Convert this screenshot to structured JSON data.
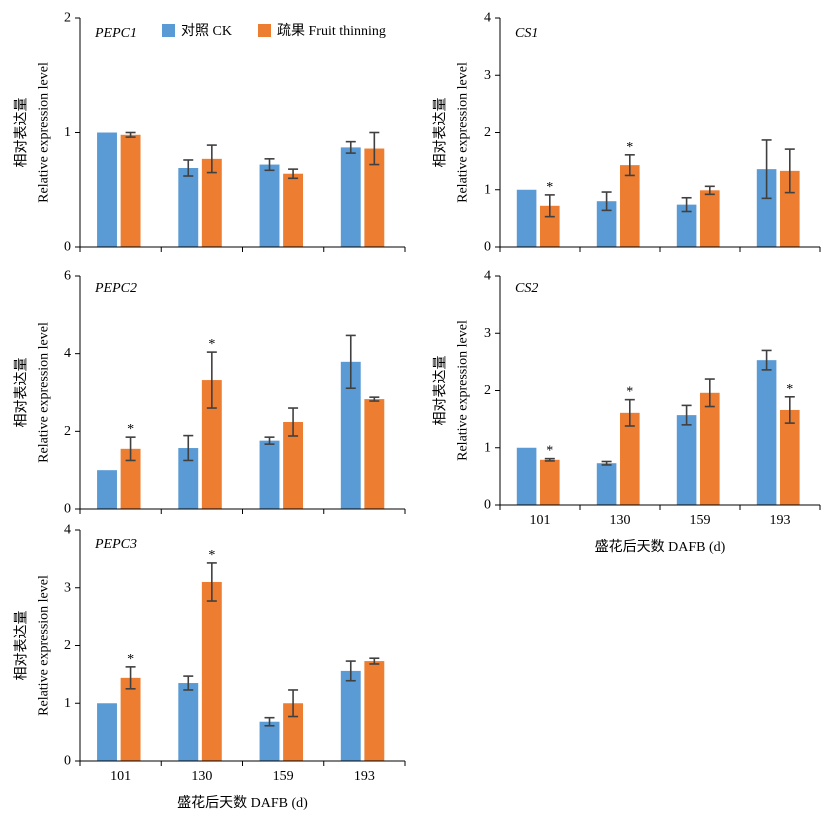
{
  "chart_data": [
    {
      "type": "bar",
      "title": "PEPC1",
      "categories": [
        "101",
        "130",
        "159",
        "193"
      ],
      "show_x_tick_labels": false,
      "xlabel": "",
      "ylabel": [
        "相对表达量",
        "Relative expression level"
      ],
      "ylim": [
        0,
        2
      ],
      "yticks": [
        0,
        1,
        2
      ],
      "grid": false,
      "legend": "top-center",
      "series": [
        {
          "name": "对照 CK",
          "color": "#5B9BD5",
          "values": [
            1.0,
            0.69,
            0.72,
            0.87
          ],
          "errors": [
            0.0,
            0.07,
            0.05,
            0.05
          ],
          "marks": [
            "",
            "",
            "",
            ""
          ]
        },
        {
          "name": "疏果 Fruit thinning",
          "color": "#ED7D31",
          "values": [
            0.98,
            0.77,
            0.64,
            0.86
          ],
          "errors": [
            0.02,
            0.12,
            0.04,
            0.14
          ],
          "marks": [
            "",
            "",
            "",
            ""
          ]
        }
      ]
    },
    {
      "type": "bar",
      "title": "CS1",
      "categories": [
        "101",
        "130",
        "159",
        "193"
      ],
      "show_x_tick_labels": false,
      "xlabel": "",
      "ylabel": [
        "相对表达量",
        "Relative expression level"
      ],
      "ylim": [
        0,
        4
      ],
      "yticks": [
        0,
        1,
        2,
        3,
        4
      ],
      "grid": false,
      "series": [
        {
          "name": "对照 CK",
          "color": "#5B9BD5",
          "values": [
            1.0,
            0.8,
            0.74,
            1.36
          ],
          "errors": [
            0.0,
            0.16,
            0.12,
            0.51
          ],
          "marks": [
            "",
            "",
            "",
            ""
          ]
        },
        {
          "name": "疏果 Fruit thinning",
          "color": "#ED7D31",
          "values": [
            0.72,
            1.43,
            0.99,
            1.33
          ],
          "errors": [
            0.19,
            0.18,
            0.07,
            0.38
          ],
          "marks": [
            "*",
            "*",
            "",
            ""
          ]
        }
      ]
    },
    {
      "type": "bar",
      "title": "PEPC2",
      "categories": [
        "101",
        "130",
        "159",
        "193"
      ],
      "show_x_tick_labels": false,
      "xlabel": "",
      "ylabel": [
        "相对表达量",
        "Relative expression level"
      ],
      "ylim": [
        0,
        6
      ],
      "yticks": [
        0,
        2,
        4,
        6
      ],
      "grid": false,
      "series": [
        {
          "name": "对照 CK",
          "color": "#5B9BD5",
          "values": [
            1.0,
            1.57,
            1.76,
            3.79
          ],
          "errors": [
            0.0,
            0.32,
            0.09,
            0.68
          ],
          "marks": [
            "",
            "",
            "",
            ""
          ]
        },
        {
          "name": "疏果 Fruit thinning",
          "color": "#ED7D31",
          "values": [
            1.55,
            3.32,
            2.24,
            2.83
          ],
          "errors": [
            0.3,
            0.72,
            0.36,
            0.05
          ],
          "marks": [
            "*",
            "*",
            "",
            ""
          ]
        }
      ]
    },
    {
      "type": "bar",
      "title": "CS2",
      "categories": [
        "101",
        "130",
        "159",
        "193"
      ],
      "show_x_tick_labels": true,
      "xlabel": "盛花后天数 DAFB (d)",
      "ylabel": [
        "相对表达量",
        "Relative expression level"
      ],
      "ylim": [
        0,
        4
      ],
      "yticks": [
        0,
        1,
        2,
        3,
        4
      ],
      "grid": false,
      "series": [
        {
          "name": "对照 CK",
          "color": "#5B9BD5",
          "values": [
            1.0,
            0.73,
            1.57,
            2.53
          ],
          "errors": [
            0.0,
            0.03,
            0.17,
            0.17
          ],
          "marks": [
            "",
            "",
            "",
            ""
          ]
        },
        {
          "name": "疏果 Fruit thinning",
          "color": "#ED7D31",
          "values": [
            0.79,
            1.61,
            1.96,
            1.66
          ],
          "errors": [
            0.02,
            0.23,
            0.24,
            0.23
          ],
          "marks": [
            "*",
            "*",
            "",
            "*"
          ]
        }
      ]
    },
    {
      "type": "bar",
      "title": "PEPC3",
      "categories": [
        "101",
        "130",
        "159",
        "193"
      ],
      "show_x_tick_labels": true,
      "xlabel": "盛花后天数 DAFB (d)",
      "ylabel": [
        "相对表达量",
        "Relative expression level"
      ],
      "ylim": [
        0,
        4
      ],
      "yticks": [
        0,
        1,
        2,
        3,
        4
      ],
      "grid": false,
      "series": [
        {
          "name": "对照 CK",
          "color": "#5B9BD5",
          "values": [
            1.0,
            1.35,
            0.68,
            1.56
          ],
          "errors": [
            0.0,
            0.12,
            0.07,
            0.17
          ],
          "marks": [
            "",
            "",
            "",
            ""
          ]
        },
        {
          "name": "疏果 Fruit thinning",
          "color": "#ED7D31",
          "values": [
            1.44,
            3.1,
            1.0,
            1.73
          ],
          "errors": [
            0.19,
            0.33,
            0.23,
            0.05
          ],
          "marks": [
            "*",
            "*",
            "",
            ""
          ]
        }
      ]
    }
  ]
}
